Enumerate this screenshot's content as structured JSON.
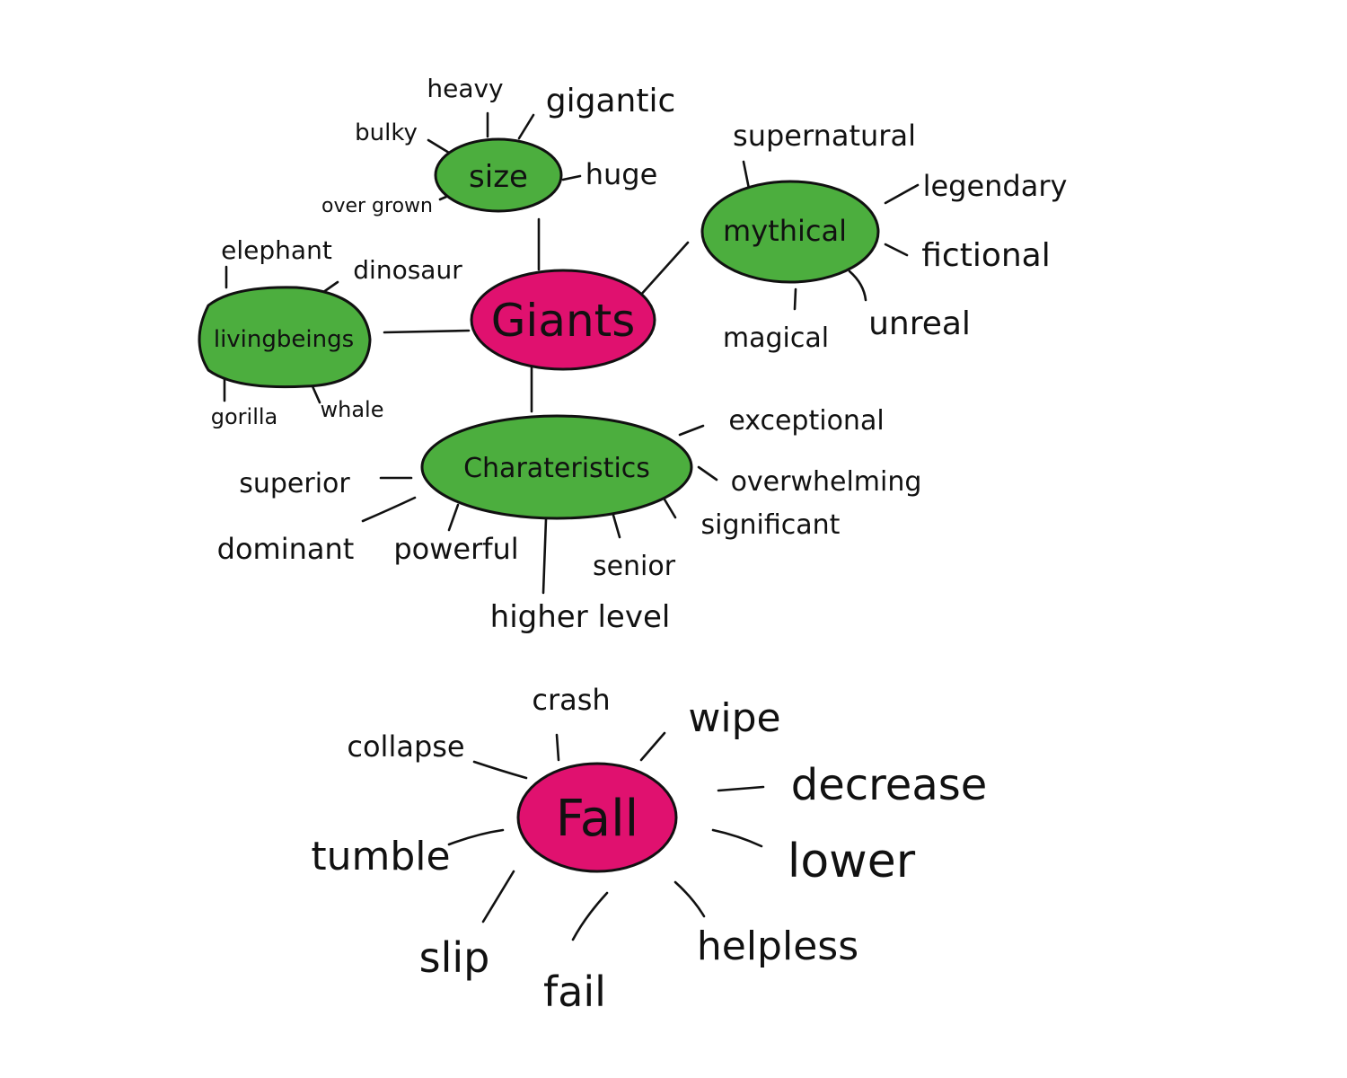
{
  "colors": {
    "central": "#e0116f",
    "category": "#4cae3e",
    "ink": "#111111",
    "background": "#ffffff"
  },
  "giants": {
    "center": "Giants",
    "size": {
      "label": "size",
      "words": [
        "heavy",
        "gigantic",
        "bulky",
        "huge",
        "over grown"
      ]
    },
    "mythical": {
      "label": "mythical",
      "words": [
        "supernatural",
        "legendary",
        "fictional",
        "unreal",
        "magical"
      ]
    },
    "living": {
      "label": "livingbeings",
      "words": [
        "elephant",
        "dinosaur",
        "gorilla",
        "whale"
      ]
    },
    "characteristics": {
      "label": "Charateristics",
      "words": [
        "exceptional",
        "overwhelming",
        "significant",
        "senior",
        "higher level",
        "powerful",
        "dominant",
        "superior"
      ]
    }
  },
  "fall": {
    "center": "Fall",
    "words": [
      "crash",
      "wipe",
      "collapse",
      "decrease",
      "tumble",
      "lower",
      "slip",
      "fail",
      "helpless"
    ]
  }
}
